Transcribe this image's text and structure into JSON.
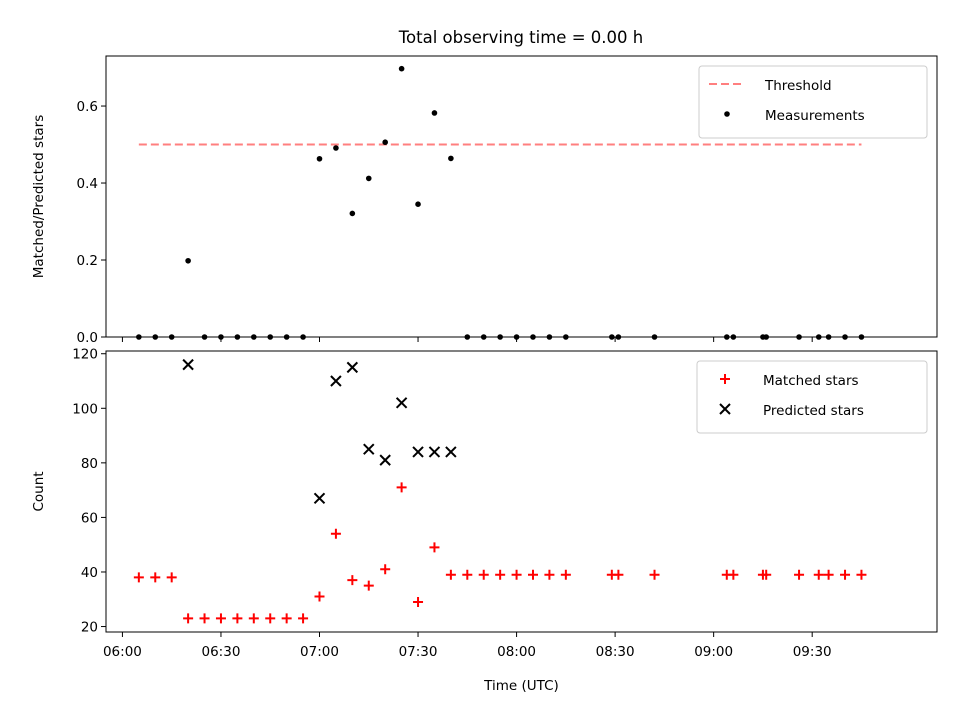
{
  "figure_title": "Total observing time = 0.00 h",
  "chart_data": [
    {
      "type": "scatter",
      "panel": "top",
      "ylabel": "Matched/Predicted stars",
      "ylim": [
        0,
        0.73
      ],
      "xlim": [
        "05:55",
        "10:08"
      ],
      "yticks": [
        "0.0",
        "0.2",
        "0.4",
        "0.6"
      ],
      "legend_position": "upper right",
      "threshold": {
        "name": "Threshold",
        "y": 0.5,
        "x_start": "06:05",
        "x_end": "09:45",
        "color": "#ff7f7f",
        "style": "dashed"
      },
      "series": [
        {
          "name": "Measurements",
          "marker": "dot",
          "color": "#000000",
          "x": [
            "06:05",
            "06:10",
            "06:15",
            "06:20",
            "06:25",
            "06:30",
            "06:35",
            "06:40",
            "06:45",
            "06:50",
            "06:55",
            "07:00",
            "07:05",
            "07:10",
            "07:15",
            "07:20",
            "07:25",
            "07:30",
            "07:35",
            "07:40",
            "07:45",
            "07:50",
            "07:55",
            "08:00",
            "08:05",
            "08:10",
            "08:15",
            "08:29",
            "08:31",
            "08:42",
            "09:04",
            "09:06",
            "09:15",
            "09:16",
            "09:26",
            "09:32",
            "09:35",
            "09:40",
            "09:45"
          ],
          "y": [
            0,
            0,
            0,
            0.198,
            0,
            0,
            0,
            0,
            0,
            0,
            0,
            0.463,
            0.491,
            0.321,
            0.412,
            0.506,
            0.697,
            0.345,
            0.582,
            0.464,
            0,
            0,
            0,
            0,
            0,
            0,
            0,
            0,
            0,
            0,
            0,
            0,
            0,
            0,
            0,
            0,
            0,
            0,
            0
          ]
        }
      ]
    },
    {
      "type": "scatter",
      "panel": "bottom",
      "xlabel": "Time (UTC)",
      "ylabel": "Count",
      "ylim": [
        18,
        121
      ],
      "xlim": [
        "05:55",
        "10:08"
      ],
      "xticks": [
        "06:00",
        "06:30",
        "07:00",
        "07:30",
        "08:00",
        "08:30",
        "09:00",
        "09:30"
      ],
      "yticks": [
        "20",
        "40",
        "60",
        "80",
        "100",
        "120"
      ],
      "legend_position": "upper right",
      "series": [
        {
          "name": "Matched stars",
          "marker": "plus",
          "color": "#ff0000",
          "x": [
            "06:05",
            "06:10",
            "06:15",
            "06:20",
            "06:25",
            "06:30",
            "06:35",
            "06:40",
            "06:45",
            "06:50",
            "06:55",
            "07:00",
            "07:05",
            "07:10",
            "07:15",
            "07:20",
            "07:25",
            "07:30",
            "07:35",
            "07:40",
            "07:45",
            "07:50",
            "07:55",
            "08:00",
            "08:05",
            "08:10",
            "08:15",
            "08:29",
            "08:31",
            "08:42",
            "09:04",
            "09:06",
            "09:15",
            "09:16",
            "09:26",
            "09:32",
            "09:35",
            "09:40",
            "09:45"
          ],
          "y": [
            38,
            38,
            38,
            23,
            23,
            23,
            23,
            23,
            23,
            23,
            23,
            31,
            54,
            37,
            35,
            41,
            71,
            29,
            49,
            39,
            39,
            39,
            39,
            39,
            39,
            39,
            39,
            39,
            39,
            39,
            39,
            39,
            39,
            39,
            39,
            39,
            39,
            39,
            39
          ]
        },
        {
          "name": "Predicted stars",
          "marker": "x",
          "color": "#000000",
          "x": [
            "06:20",
            "07:00",
            "07:05",
            "07:10",
            "07:15",
            "07:20",
            "07:25",
            "07:30",
            "07:35",
            "07:40"
          ],
          "y": [
            116,
            67,
            110,
            115,
            85,
            81,
            102,
            84,
            84,
            84
          ]
        }
      ]
    }
  ]
}
